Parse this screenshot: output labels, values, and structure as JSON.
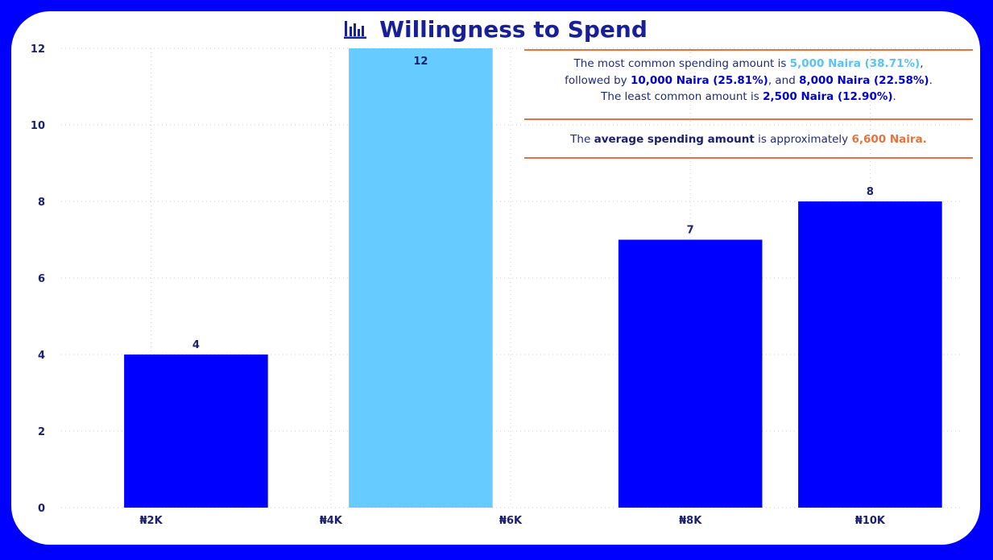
{
  "title": "Willingness to Spend",
  "icon": "bar-chart-icon",
  "colors": {
    "background": "#0000ff",
    "bar_default": "#0000ff",
    "bar_highlight": "#66ccff",
    "title": "#17209a",
    "accent": "#e6733e"
  },
  "chart_data": {
    "type": "bar",
    "title": "Willingness to Spend",
    "xlabel": "",
    "ylabel": "",
    "x_numeric": true,
    "xlim": [
      1000,
      11000
    ],
    "x_ticks": [
      2000,
      4000,
      6000,
      8000,
      10000
    ],
    "x_tick_labels": [
      "₦2K",
      "₦4K",
      "₦6K",
      "₦8K",
      "₦10K"
    ],
    "x": [
      2500,
      5000,
      8000,
      10000
    ],
    "values": [
      4,
      12,
      7,
      8
    ],
    "data_labels": [
      "4",
      "12",
      "7",
      "8"
    ],
    "highlight_x": 5000,
    "ylim": [
      0,
      12
    ],
    "y_ticks": [
      0,
      2,
      4,
      6,
      8,
      10,
      12
    ],
    "y_tick_labels": [
      "0",
      "2",
      "4",
      "6",
      "8",
      "10",
      "12"
    ],
    "grid": true
  },
  "notes": {
    "note1": {
      "line1_pre": "The most common spending amount is ",
      "line1_hl": "5,000 Naira (38.71%)",
      "line1_post": ",",
      "line2_pre": "followed by ",
      "line2_hl1": "10,000 Naira (25.81%)",
      "line2_mid": ", and ",
      "line2_hl2": "8,000 Naira (22.58%)",
      "line2_post": ".",
      "line3_pre": "The least common amount is ",
      "line3_hl": "2,500 Naira (12.90%)",
      "line3_post": "."
    },
    "note2": {
      "pre": "The ",
      "hl1": "average spending amount",
      "mid": " is approximately ",
      "hl2": "6,600 Naira."
    }
  }
}
